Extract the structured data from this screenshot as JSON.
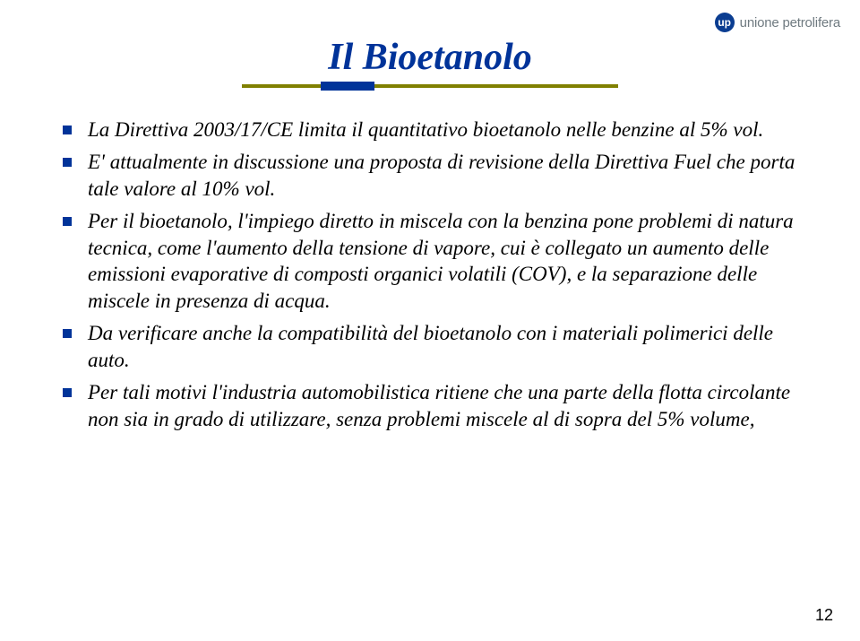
{
  "logo": {
    "badge": "up",
    "text": "unione petrolifera"
  },
  "title": "Il Bioetanolo",
  "bullets": [
    "La Direttiva 2003/17/CE limita il quantitativo bioetanolo nelle benzine al 5% vol.",
    "E' attualmente in discussione una proposta di revisione della Direttiva Fuel che porta tale valore al 10% vol.",
    "Per il bioetanolo, l'impiego diretto in miscela con la benzina pone problemi di natura tecnica, come l'aumento della tensione di vapore, cui è collegato un aumento delle emissioni evaporative di composti organici volatili (COV), e la separazione delle miscele in presenza di acqua.",
    "Da verificare anche la compatibilità del bioetanolo con i materiali polimerici delle auto.",
    "Per tali motivi l'industria automobilistica ritiene che una parte della flotta circolante non sia in grado di utilizzare, senza problemi miscele al di sopra del 5% volume,"
  ],
  "pageNumber": "12",
  "colors": {
    "title": "#003399",
    "underline": "#808000",
    "accent": "#003399",
    "bullet": "#003399",
    "logoBadgeBg": "#0b3d91",
    "logoText": "#6f7a80"
  }
}
